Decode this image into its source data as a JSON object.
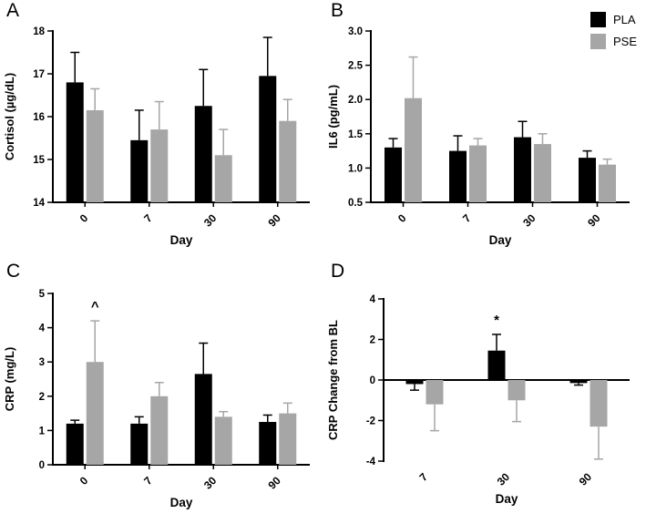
{
  "figure": {
    "background": "#ffffff"
  },
  "legend": {
    "items": [
      {
        "label": "PLA",
        "color": "#000000"
      },
      {
        "label": "PSE",
        "color": "#a6a6a6"
      }
    ]
  },
  "chart_data": [
    {
      "panel": "A",
      "type": "bar",
      "title": "",
      "ylabel": "Cortisol (µg/dL)",
      "xlabel": "Day",
      "ylim": [
        14,
        18
      ],
      "yticks": [
        "14",
        "15",
        "16",
        "17",
        "18"
      ],
      "baseline": 14,
      "grid": false,
      "legend_position": "none",
      "categories": [
        "0",
        "7",
        "30",
        "90"
      ],
      "series": [
        {
          "name": "PLA",
          "color": "#000000",
          "values": [
            16.8,
            15.45,
            16.25,
            16.95
          ],
          "errors": [
            0.7,
            0.7,
            0.85,
            0.9
          ]
        },
        {
          "name": "PSE",
          "color": "#a6a6a6",
          "values": [
            16.15,
            15.7,
            15.1,
            15.9
          ],
          "errors": [
            0.5,
            0.65,
            0.6,
            0.5
          ]
        }
      ],
      "annotations": []
    },
    {
      "panel": "B",
      "type": "bar",
      "title": "",
      "ylabel": "IL6 (pg/mL)",
      "xlabel": "Day",
      "ylim": [
        0.5,
        3.0
      ],
      "yticks": [
        "0.5",
        "1.0",
        "1.5",
        "2.0",
        "2.5",
        "3.0"
      ],
      "baseline": 0.5,
      "grid": false,
      "legend_position": "top-right",
      "categories": [
        "0",
        "7",
        "30",
        "90"
      ],
      "series": [
        {
          "name": "PLA",
          "color": "#000000",
          "values": [
            1.3,
            1.25,
            1.45,
            1.15
          ],
          "errors": [
            0.13,
            0.22,
            0.23,
            0.1
          ]
        },
        {
          "name": "PSE",
          "color": "#a6a6a6",
          "values": [
            2.02,
            1.33,
            1.35,
            1.05
          ],
          "errors": [
            0.6,
            0.1,
            0.15,
            0.08
          ]
        }
      ],
      "annotations": []
    },
    {
      "panel": "C",
      "type": "bar",
      "title": "",
      "ylabel": "CRP (mg/L)",
      "xlabel": "Day",
      "ylim": [
        0,
        5
      ],
      "yticks": [
        "0",
        "1",
        "2",
        "3",
        "4",
        "5"
      ],
      "baseline": 0,
      "grid": false,
      "legend_position": "none",
      "categories": [
        "0",
        "7",
        "30",
        "90"
      ],
      "series": [
        {
          "name": "PLA",
          "color": "#000000",
          "values": [
            1.2,
            1.2,
            2.65,
            1.25
          ],
          "errors": [
            0.1,
            0.2,
            0.9,
            0.2
          ]
        },
        {
          "name": "PSE",
          "color": "#a6a6a6",
          "values": [
            3.0,
            2.0,
            1.4,
            1.5
          ],
          "errors": [
            1.2,
            0.4,
            0.15,
            0.3
          ]
        }
      ],
      "annotations": [
        {
          "text": "^",
          "series": "PSE",
          "category": "0",
          "y": 4.5
        }
      ]
    },
    {
      "panel": "D",
      "type": "bar",
      "title": "",
      "ylabel": "CRP Change from BL",
      "xlabel": "Day",
      "ylim": [
        -4,
        4
      ],
      "yticks": [
        "-4",
        "-2",
        "0",
        "2",
        "4"
      ],
      "baseline": 0,
      "grid": false,
      "legend_position": "none",
      "categories": [
        "7",
        "30",
        "90"
      ],
      "series": [
        {
          "name": "PLA",
          "color": "#000000",
          "values": [
            -0.2,
            1.45,
            -0.15
          ],
          "errors": [
            0.3,
            0.8,
            0.1
          ]
        },
        {
          "name": "PSE",
          "color": "#a6a6a6",
          "values": [
            -1.2,
            -1.0,
            -2.3
          ],
          "errors": [
            1.3,
            1.05,
            1.6
          ]
        }
      ],
      "annotations": [
        {
          "text": "*",
          "series": "PLA",
          "category": "30",
          "y": 2.75
        }
      ]
    }
  ]
}
